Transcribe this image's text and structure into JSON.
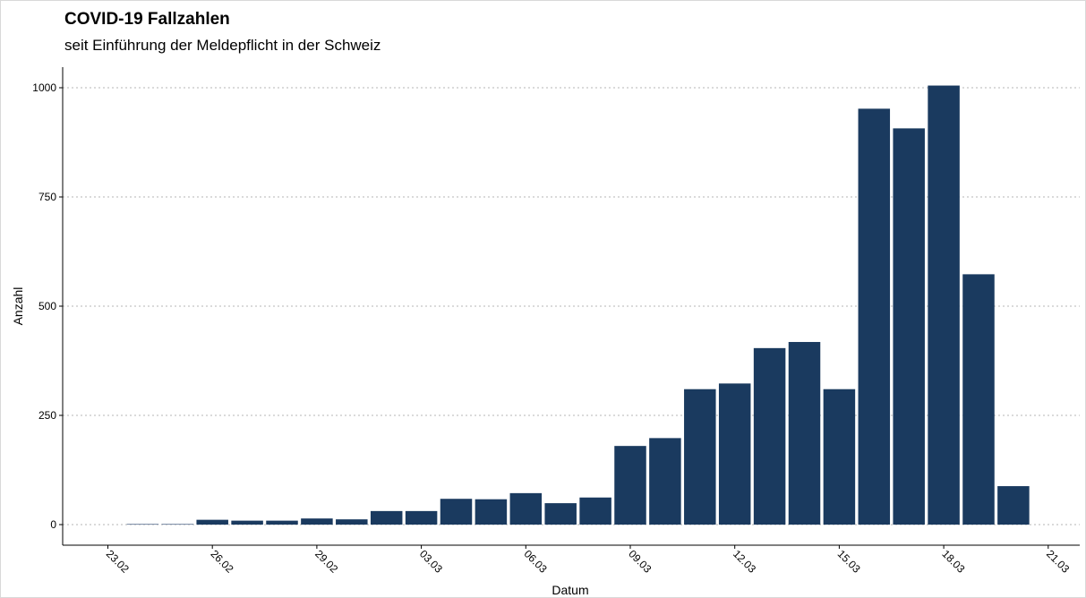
{
  "chart_data": {
    "type": "bar",
    "title": "COVID-19 Fallzahlen",
    "subtitle": "seit Einführung der Meldepflicht in der Schweiz",
    "xlabel": "Datum",
    "ylabel": "Anzahl",
    "ylim": [
      0,
      1060
    ],
    "yticks": [
      0,
      250,
      500,
      750,
      1000
    ],
    "grid": "horizontal dotted",
    "legend": "none",
    "bar_color": "#1a3a5f",
    "x_tick_labels": [
      "23.02",
      "26.02",
      "29.02",
      "03.03",
      "06.03",
      "09.03",
      "12.03",
      "15.03",
      "18.03",
      "21.03"
    ],
    "categories": [
      "24.02",
      "25.02",
      "26.02",
      "27.02",
      "28.02",
      "29.02",
      "01.03",
      "02.03",
      "03.03",
      "04.03",
      "05.03",
      "06.03",
      "07.03",
      "08.03",
      "09.03",
      "10.03",
      "11.03",
      "12.03",
      "13.03",
      "14.03",
      "15.03",
      "16.03",
      "17.03",
      "18.03",
      "19.03",
      "20.03"
    ],
    "values": [
      1,
      1,
      11,
      9,
      9,
      14,
      12,
      31,
      31,
      59,
      58,
      72,
      49,
      62,
      180,
      198,
      310,
      323,
      404,
      418,
      310,
      952,
      907,
      1005,
      573,
      88
    ]
  }
}
